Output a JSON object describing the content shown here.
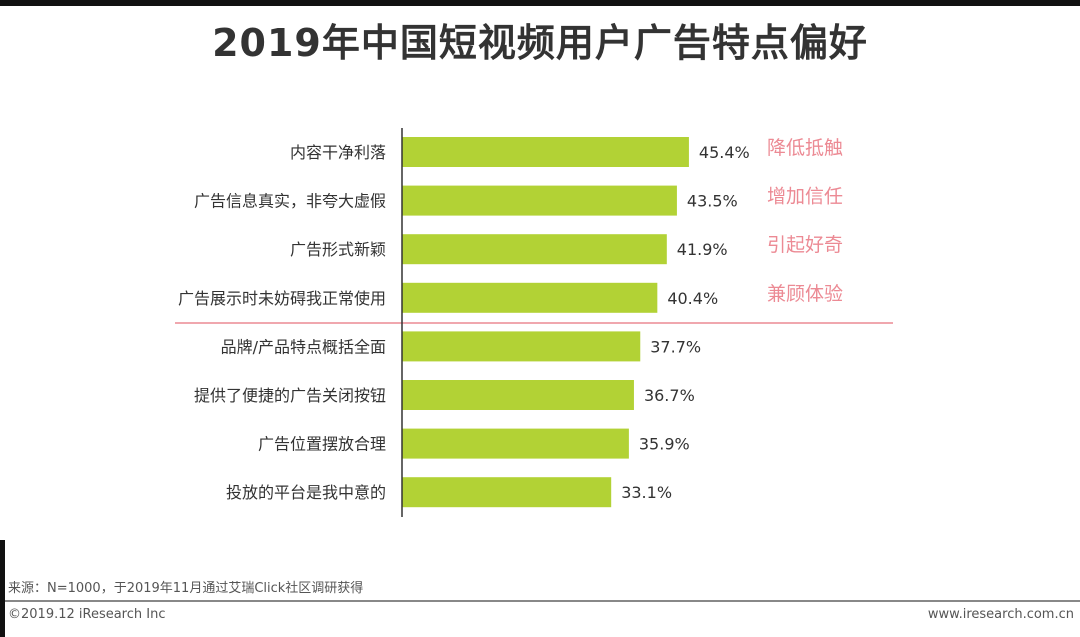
{
  "chart_data": {
    "type": "bar",
    "orientation": "horizontal",
    "title": "2019年中国短视频用户广告特点偏好",
    "categories": [
      "内容干净利落",
      "广告信息真实，非夸大虚假",
      "广告形式新颖",
      "广告展示时未妨碍我正常使用",
      "品牌/产品特点概括全面",
      "提供了便捷的广告关闭按钮",
      "广告位置摆放合理",
      "投放的平台是我中意的"
    ],
    "values": [
      45.4,
      43.5,
      41.9,
      40.4,
      37.7,
      36.7,
      35.9,
      33.1
    ],
    "value_labels": [
      "45.4%",
      "43.5%",
      "41.9%",
      "40.4%",
      "37.7%",
      "36.7%",
      "35.9%",
      "33.1%"
    ],
    "annotations": [
      "降低抵触",
      "增加信任",
      "引起好奇",
      "兼顾体验"
    ],
    "xlim": [
      0,
      100
    ],
    "grid": false,
    "bar_color": "#b2d235",
    "annotation_color": "#ec8a94"
  },
  "footer": {
    "source": "来源：N=1000，于2019年11月通过艾瑞Click社区调研获得",
    "copyright": "©2019.12 iResearch Inc",
    "website": "www.iresearch.com.cn"
  }
}
